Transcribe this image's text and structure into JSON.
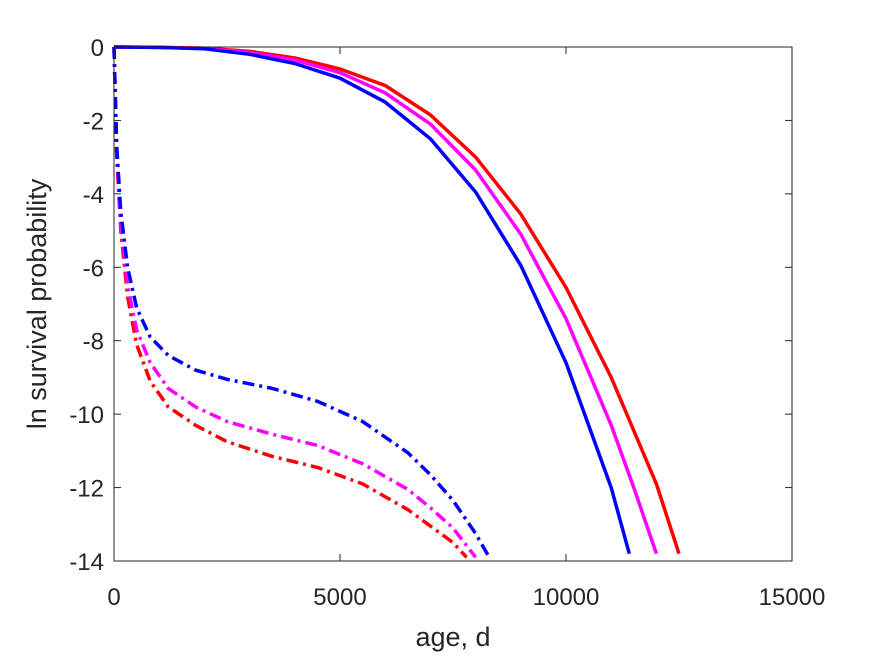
{
  "chart_data": {
    "type": "line",
    "xlabel": "age, d",
    "ylabel": "ln survival probability",
    "xlim": [
      0,
      15000
    ],
    "ylim": [
      -14,
      0
    ],
    "xticks": [
      0,
      5000,
      10000,
      15000
    ],
    "yticks": [
      0,
      -2,
      -4,
      -6,
      -8,
      -10,
      -12,
      -14
    ],
    "grid": false,
    "legend": "none",
    "series": [
      {
        "color": "#ff0000",
        "style": "solid",
        "x": [
          0,
          1000,
          2000,
          3000,
          4000,
          5000,
          6000,
          7000,
          8000,
          9000,
          10000,
          11000,
          12000,
          12500
        ],
        "y": [
          0,
          -0.01,
          -0.03,
          -0.12,
          -0.3,
          -0.6,
          -1.05,
          -1.85,
          -3.0,
          -4.55,
          -6.55,
          -9.0,
          -11.9,
          -13.8
        ]
      },
      {
        "color": "#ff00ff",
        "style": "solid",
        "x": [
          0,
          1000,
          2000,
          3000,
          4000,
          5000,
          6000,
          7000,
          8000,
          9000,
          10000,
          11000,
          11500,
          12000
        ],
        "y": [
          0,
          -0.01,
          -0.04,
          -0.15,
          -0.35,
          -0.7,
          -1.25,
          -2.1,
          -3.35,
          -5.1,
          -7.4,
          -10.3,
          -12.0,
          -13.8
        ]
      },
      {
        "color": "#0000ff",
        "style": "solid",
        "x": [
          0,
          1000,
          2000,
          3000,
          4000,
          5000,
          6000,
          7000,
          8000,
          9000,
          10000,
          11000,
          11400
        ],
        "y": [
          0,
          -0.01,
          -0.05,
          -0.2,
          -0.45,
          -0.85,
          -1.5,
          -2.5,
          -3.95,
          -5.95,
          -8.6,
          -12.0,
          -13.8
        ]
      },
      {
        "color": "#ff0000",
        "style": "dashdot",
        "x": [
          0,
          60,
          150,
          300,
          500,
          800,
          1200,
          1800,
          2500,
          3500,
          4500,
          5500,
          6500,
          7000,
          7500,
          7800
        ],
        "y": [
          0,
          -3.0,
          -5.0,
          -6.8,
          -8.1,
          -9.1,
          -9.8,
          -10.3,
          -10.75,
          -11.15,
          -11.45,
          -11.9,
          -12.6,
          -13.05,
          -13.5,
          -13.9
        ]
      },
      {
        "color": "#ff00ff",
        "style": "dashdot",
        "x": [
          0,
          60,
          150,
          300,
          500,
          800,
          1200,
          1800,
          2500,
          3500,
          4500,
          5500,
          6500,
          7000,
          7500,
          8000
        ],
        "y": [
          0,
          -2.9,
          -4.8,
          -6.5,
          -7.7,
          -8.6,
          -9.3,
          -9.8,
          -10.2,
          -10.55,
          -10.85,
          -11.35,
          -12.05,
          -12.55,
          -13.1,
          -13.9
        ]
      },
      {
        "color": "#0000ff",
        "style": "dashdot",
        "x": [
          0,
          60,
          150,
          300,
          500,
          800,
          1200,
          1800,
          2500,
          3500,
          4500,
          5500,
          6500,
          7000,
          7500,
          8000,
          8300
        ],
        "y": [
          0,
          -2.7,
          -4.5,
          -6.0,
          -7.1,
          -7.9,
          -8.4,
          -8.8,
          -9.05,
          -9.3,
          -9.65,
          -10.2,
          -11.05,
          -11.65,
          -12.35,
          -13.25,
          -13.9
        ]
      }
    ]
  }
}
